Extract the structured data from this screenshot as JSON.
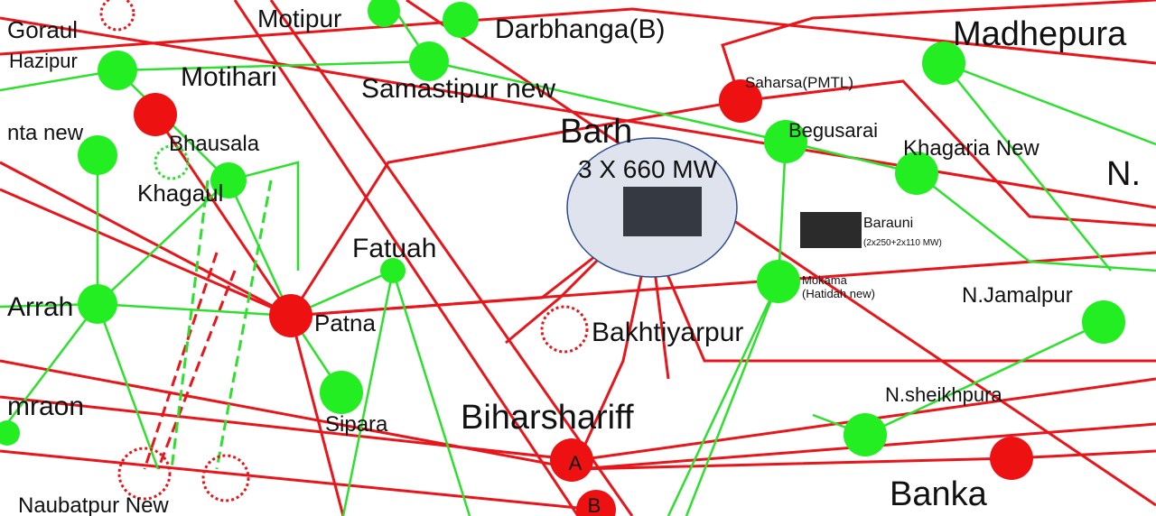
{
  "labels": [
    "Goraul",
    "Motipur",
    "Darbhanga(B)",
    "Madhepura",
    "Hazipur",
    "Motihari",
    "Samastipur new",
    "Saharsa(PMTL)",
    "Barh",
    "3 X 660 MW",
    "Begusarai",
    "Khagaria New",
    "N.",
    "nta new",
    "Bhausala",
    "Khagaul",
    "Barauni",
    "(2x250+2x110 MW)",
    "Fatuah",
    "Mokama",
    "(Hatidah new)",
    "N.Jamalpur",
    "Arrah",
    "Patna",
    "Bakhtiyarpur",
    "mraon",
    "Sipara",
    "Biharshariff",
    "N.sheikhpura",
    "A",
    "B",
    "Banka",
    "Naubatpur New"
  ]
}
